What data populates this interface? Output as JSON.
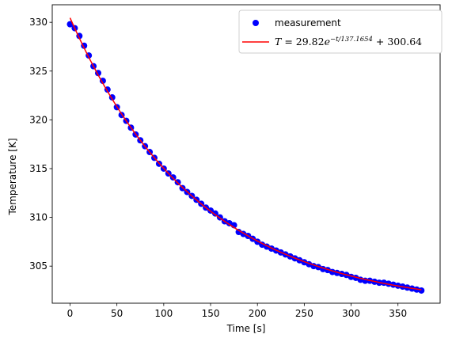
{
  "chart_data": {
    "type": "scatter",
    "title": "",
    "xlabel": "Time [s]",
    "ylabel": "Temperature [K]",
    "xlim": [
      -19,
      395
    ],
    "ylim": [
      301.2,
      331.8
    ],
    "xticks": [
      0,
      50,
      100,
      150,
      200,
      250,
      300,
      350
    ],
    "yticks": [
      305,
      310,
      315,
      320,
      325,
      330
    ],
    "grid": false,
    "legend_position": "top-right",
    "colors": {
      "measurement": "#0000ff",
      "fit": "#ff0000"
    },
    "series": [
      {
        "name": "measurement",
        "kind": "points",
        "x": [
          0,
          5,
          10,
          15,
          20,
          25,
          30,
          35,
          40,
          45,
          50,
          55,
          60,
          65,
          70,
          75,
          80,
          85,
          90,
          95,
          100,
          105,
          110,
          115,
          120,
          125,
          130,
          135,
          140,
          145,
          150,
          155,
          160,
          165,
          170,
          175,
          180,
          185,
          190,
          195,
          200,
          205,
          210,
          215,
          220,
          225,
          230,
          235,
          240,
          245,
          250,
          255,
          260,
          265,
          270,
          275,
          280,
          285,
          290,
          295,
          300,
          305,
          310,
          315,
          320,
          325,
          330,
          335,
          340,
          345,
          350,
          355,
          360,
          365,
          370,
          375
        ],
        "y": [
          329.8,
          329.4,
          328.6,
          327.6,
          326.6,
          325.5,
          324.8,
          324.0,
          323.1,
          322.3,
          321.3,
          320.5,
          319.9,
          319.2,
          318.5,
          317.9,
          317.3,
          316.7,
          316.1,
          315.5,
          315.0,
          314.5,
          314.1,
          313.6,
          313.0,
          312.6,
          312.2,
          311.8,
          311.4,
          311.0,
          310.7,
          310.4,
          310.0,
          309.6,
          309.4,
          309.2,
          308.5,
          308.3,
          308.1,
          307.8,
          307.5,
          307.2,
          307.0,
          306.8,
          306.6,
          306.4,
          306.2,
          306.0,
          305.8,
          305.6,
          305.4,
          305.2,
          305.0,
          304.9,
          304.7,
          304.6,
          304.4,
          304.3,
          304.2,
          304.1,
          303.9,
          303.8,
          303.6,
          303.5,
          303.5,
          303.4,
          303.3,
          303.3,
          303.2,
          303.1,
          303.0,
          302.9,
          302.8,
          302.7,
          302.6,
          302.5
        ]
      },
      {
        "name": "T = 29.82e^(-t/137.1654) + 300.64",
        "kind": "line",
        "formula": {
          "amplitude": 29.82,
          "tau": 137.1654,
          "offset": 300.64
        },
        "x_range": [
          0,
          375
        ]
      }
    ]
  },
  "legend": {
    "entries": [
      {
        "label": "measurement"
      },
      {
        "label_parts": {
          "lhs": "T",
          "eq": " = 29.82",
          "base": "e",
          "exponent": "−t/137.1654",
          "tail": " + 300.64"
        }
      }
    ]
  }
}
